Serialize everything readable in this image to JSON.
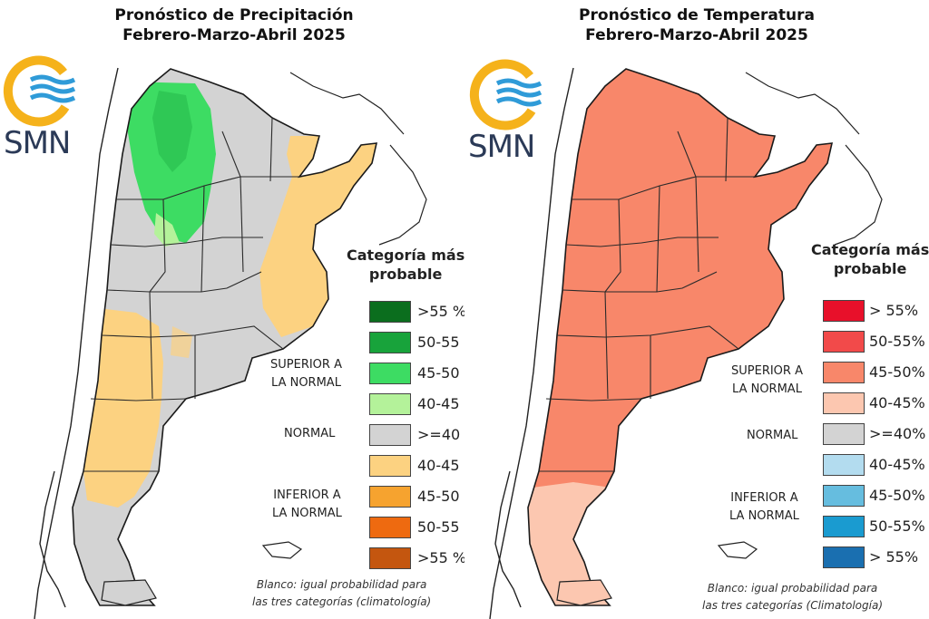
{
  "precip": {
    "title_line1": "Pronóstico de Precipitación",
    "title_line2": "Febrero-Marzo-Abril 2025",
    "logo_text": "SMN",
    "legend_title_line1": "Categoría más",
    "legend_title_line2": "probable",
    "legend": [
      {
        "label": ">55 %",
        "color": "#0b6e1e"
      },
      {
        "label": "50-55 %",
        "color": "#18a33b"
      },
      {
        "label": "45-50 %",
        "color": "#3ddc63"
      },
      {
        "label": "40-45 %",
        "color": "#b4f29a"
      },
      {
        "label": ">=40 %",
        "color": "#d3d3d3"
      },
      {
        "label": "40-45 %",
        "color": "#fcd281"
      },
      {
        "label": "45-50 %",
        "color": "#f6a32f"
      },
      {
        "label": "50-55 %",
        "color": "#ee6a10"
      },
      {
        "label": ">55 %",
        "color": "#c4560f"
      }
    ],
    "group_superior_line1": "SUPERIOR A",
    "group_superior_line2": "LA NORMAL",
    "group_normal": "NORMAL",
    "group_inferior_line1": "INFERIOR A",
    "group_inferior_line2": "LA NORMAL",
    "note_line1": "Blanco: igual probabilidad para",
    "note_line2": "las tres categorías (climatología)"
  },
  "temp": {
    "title_line1": "Pronóstico de Temperatura",
    "title_line2": "Febrero-Marzo-Abril 2025",
    "logo_text": "SMN",
    "legend_title_line1": "Categoría más",
    "legend_title_line2": "probable",
    "legend": [
      {
        "label": "> 55%",
        "color": "#e8102a"
      },
      {
        "label": "50-55%",
        "color": "#f24a4a"
      },
      {
        "label": "45-50%",
        "color": "#f8876a"
      },
      {
        "label": "40-45%",
        "color": "#fcc7b0"
      },
      {
        "label": ">=40%",
        "color": "#d3d3d3"
      },
      {
        "label": "40-45%",
        "color": "#b3dcef"
      },
      {
        "label": "45-50%",
        "color": "#66bddf"
      },
      {
        "label": "50-55%",
        "color": "#1a9bd0"
      },
      {
        "label": "> 55%",
        "color": "#1a6fb0"
      }
    ],
    "group_superior_line1": "SUPERIOR A",
    "group_superior_line2": "LA NORMAL",
    "group_normal": "NORMAL",
    "group_inferior_line1": "INFERIOR A",
    "group_inferior_line2": "LA NORMAL",
    "note_line1": "Blanco: igual probabilidad para",
    "note_line2": "las tres categorías (Climatología)"
  },
  "colors": {
    "logo_sun": "#f5b21b",
    "logo_waves": "#2f9bd8",
    "logo_text": "#2b3a57",
    "country_outline": "#1a1a1a",
    "province_lines": "#2a2a2a"
  }
}
